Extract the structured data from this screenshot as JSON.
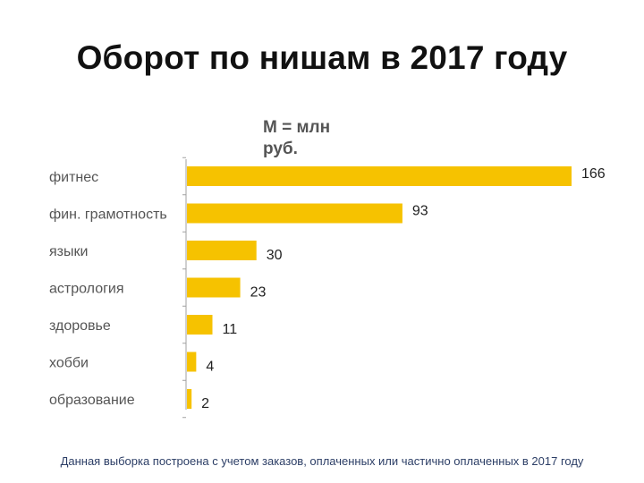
{
  "title": "Оборот по нишам в 2017 году",
  "unit_label": "М = млн руб.",
  "footnote": "Данная выборка построена с учетом заказов, оплаченных или частично оплаченных в 2017 году",
  "colors": {
    "bar": "#f6c200",
    "axis": "#a0a0a0",
    "title": "#111111"
  },
  "chart_data": {
    "type": "bar",
    "orientation": "horizontal",
    "title": "Оборот по нишам в 2017 году",
    "xlabel": "",
    "ylabel": "",
    "unit": "М = млн руб.",
    "categories": [
      "фитнес",
      "фин. грамотность",
      "языки",
      "астрология",
      "здоровье",
      "хобби",
      "образование"
    ],
    "values": [
      166,
      93,
      30,
      23,
      11,
      4,
      2
    ],
    "data_labels": [
      "166",
      "93",
      "30",
      "23",
      "11",
      "4",
      "2"
    ],
    "xlim": [
      0,
      166
    ],
    "grid": false,
    "legend": "none"
  }
}
